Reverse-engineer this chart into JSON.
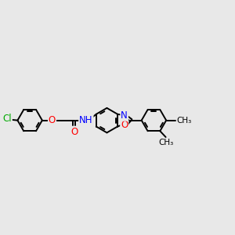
{
  "bg_color": "#e8e8e8",
  "bond_color": "#000000",
  "bond_width": 1.4,
  "atom_colors": {
    "Cl": "#00aa00",
    "O": "#ff0000",
    "N": "#0000ff",
    "C": "#000000"
  },
  "font_size": 8.5,
  "fig_width": 3.0,
  "fig_height": 3.0,
  "dpi": 100,
  "xlim": [
    0,
    12
  ],
  "ylim": [
    2,
    8
  ]
}
